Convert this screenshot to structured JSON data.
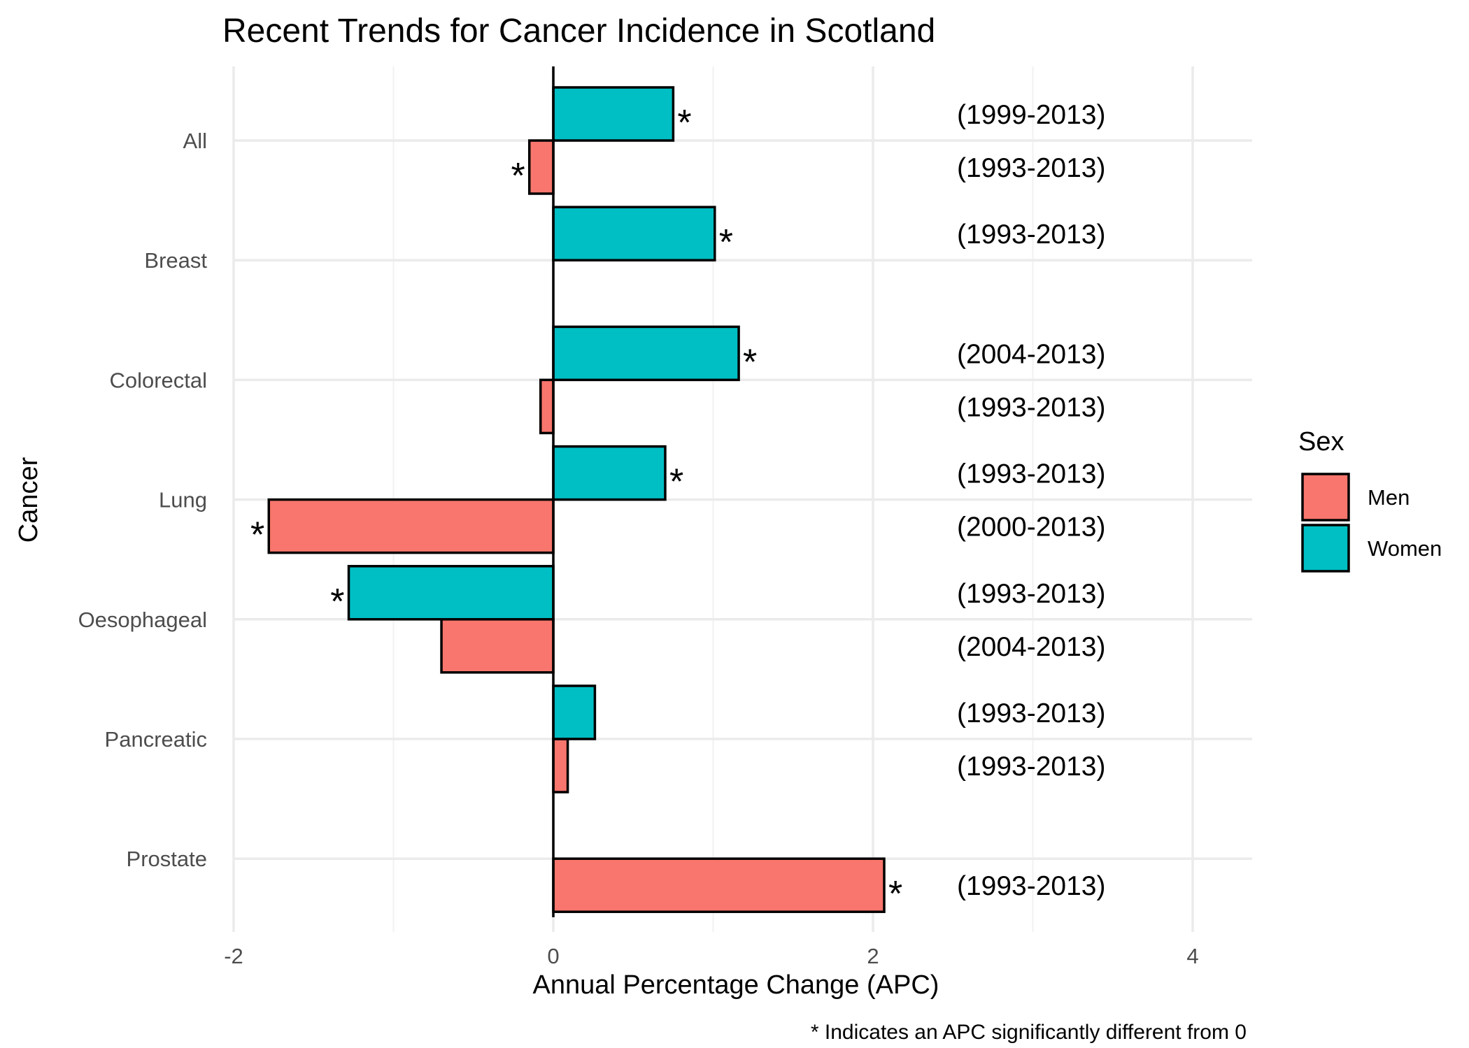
{
  "chart_data": {
    "type": "bar",
    "orientation": "horizontal",
    "title": "Recent Trends for Cancer Incidence in Scotland",
    "xlabel": "Annual Percentage Change (APC)",
    "ylabel": "Cancer",
    "caption": "* Indicates an APC significantly different from 0",
    "xlim": [
      -2,
      4
    ],
    "xticks": [
      -2,
      0,
      2,
      4
    ],
    "xtick_labels": [
      "-2",
      "0",
      "2",
      "4"
    ],
    "grid": true,
    "legend": {
      "title": "Sex",
      "position": "right",
      "entries": [
        "Men",
        "Women"
      ]
    },
    "colors": {
      "Men": "#F8766D",
      "Women": "#00BFC4"
    },
    "categories": [
      "All",
      "Breast",
      "Colorectal",
      "Lung",
      "Oesophageal",
      "Pancreatic",
      "Prostate"
    ],
    "series": [
      {
        "name": "Men",
        "values": [
          -0.15,
          null,
          -0.08,
          -1.78,
          -0.7,
          0.09,
          2.07
        ],
        "significant": [
          true,
          null,
          false,
          true,
          false,
          false,
          true
        ],
        "periods": [
          "(1993-2013)",
          null,
          "(1993-2013)",
          "(2000-2013)",
          "(2004-2013)",
          "(1993-2013)",
          "(1993-2013)"
        ]
      },
      {
        "name": "Women",
        "values": [
          0.75,
          1.01,
          1.16,
          0.7,
          -1.28,
          0.26,
          null
        ],
        "significant": [
          true,
          true,
          true,
          true,
          true,
          false,
          null
        ],
        "periods": [
          "(1999-2013)",
          "(1993-2013)",
          "(2004-2013)",
          "(1993-2013)",
          "(1993-2013)",
          "(1993-2013)",
          null
        ]
      }
    ],
    "significance_marker": "*"
  }
}
